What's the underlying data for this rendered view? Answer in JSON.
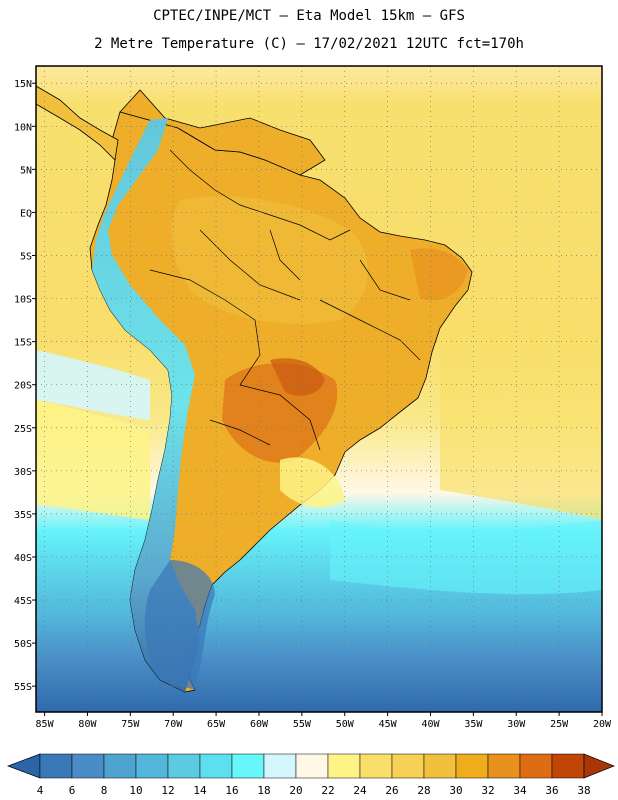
{
  "title": {
    "line1": "CPTEC/INPE/MCT –  Eta Model 15km – GFS",
    "line2": "2 Metre Temperature (C) – 17/02/2021 12UTC fct=170h"
  },
  "map": {
    "lat_labels": [
      "15N",
      "10N",
      "5N",
      "EQ",
      "5S",
      "10S",
      "15S",
      "20S",
      "25S",
      "30S",
      "35S",
      "40S",
      "45S",
      "50S",
      "55S"
    ],
    "lat_values": [
      15,
      10,
      5,
      0,
      -5,
      -10,
      -15,
      -20,
      -25,
      -30,
      -35,
      -40,
      -45,
      -50,
      -55
    ],
    "lon_labels": [
      "85W",
      "80W",
      "75W",
      "70W",
      "65W",
      "60W",
      "55W",
      "50W",
      "45W",
      "40W",
      "35W",
      "30W",
      "25W",
      "20W"
    ],
    "lon_values": [
      -85,
      -80,
      -75,
      -70,
      -65,
      -60,
      -55,
      -50,
      -45,
      -40,
      -35,
      -30,
      -25,
      -20
    ],
    "extent": {
      "lon_min": -86,
      "lon_max": -20,
      "lat_min": -58,
      "lat_max": 17
    }
  },
  "colorbar": {
    "labels": [
      "4",
      "6",
      "8",
      "10",
      "12",
      "14",
      "16",
      "18",
      "20",
      "22",
      "24",
      "26",
      "28",
      "30",
      "32",
      "34",
      "36",
      "38"
    ],
    "colors": [
      "#3b78b8",
      "#4a8dc6",
      "#4ea3cf",
      "#53b7dc",
      "#5ccbe2",
      "#5cdfee",
      "#66f7fb",
      "#d4f6fd",
      "#fff8e6",
      "#fdf386",
      "#f9df6a",
      "#f7d155",
      "#f1c13e",
      "#efad1b",
      "#e8911c",
      "#de6c12",
      "#c04507"
    ],
    "low_arrow_color": "#2b64a7",
    "high_arrow_color": "#a83607"
  },
  "colors": {
    "ocean_tropical": "#f9e070",
    "ocean_south": "#2e70b0",
    "land": "#eeae2a",
    "andes": "#5ccbe2",
    "hot_core": "#de7a1a"
  }
}
